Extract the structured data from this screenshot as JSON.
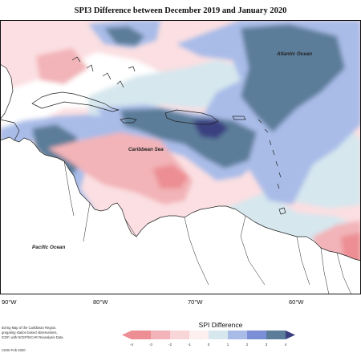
{
  "title": "SPI3 Difference between December 2019 and January 2020",
  "labels": {
    "atlantic": "Atlantic Ocean",
    "caribbean": "Caribbean Sea",
    "pacific": "Pacific Ocean"
  },
  "longitudes": [
    "90°W",
    "80°W",
    "70°W",
    "60°W"
  ],
  "caption_lines": [
    "itoring Map of the Caribbean Region.",
    "gregating station based observations,",
    "ICDF, with NCEP/NCAR Reanalysis Data"
  ],
  "footer": "CIMH Feb 2020",
  "legend": {
    "title": "SPI Difference",
    "ticks": [
      "-4",
      "-3",
      "-2",
      "-1",
      "0",
      "1",
      "2",
      "3",
      "4"
    ],
    "colors": [
      "#ec8e93",
      "#f2b4b8",
      "#f8d6d8",
      "#fdeef0",
      "#d6e7ee",
      "#a9bce8",
      "#7b8fd6",
      "#5c7d9a",
      "#3b3f80"
    ]
  }
}
